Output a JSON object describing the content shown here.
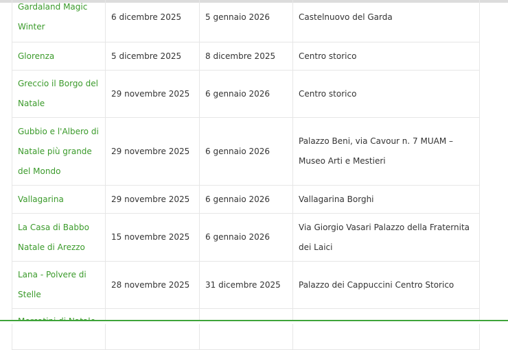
{
  "rows": [
    {
      "name": "Gardaland Magic Winter",
      "start": "6 dicembre 2025",
      "end": "5 gennaio 2026",
      "place": "Castelnuovo del Garda"
    },
    {
      "name": "Glorenza",
      "start": "5 dicembre 2025",
      "end": "8 dicembre 2025",
      "place": "Centro storico"
    },
    {
      "name": "Greccio il Borgo del Natale",
      "start": "29 novembre 2025",
      "end": "6 gennaio 2026",
      "place": "Centro storico"
    },
    {
      "name": "Gubbio e l'Albero di Natale più grande del Mondo",
      "start": "29 novembre 2025",
      "end": "6 gennaio 2026",
      "place": "Palazzo Beni, via Cavour n. 7 MUAM – Museo Arti e Mestieri"
    },
    {
      "name": "Vallagarina",
      "start": "29 novembre 2025",
      "end": "6 gennaio 2026",
      "place": "Vallagarina Borghi"
    },
    {
      "name": "La Casa di Babbo Natale di Arezzo",
      "start": "15 novembre 2025",
      "end": "6 gennaio 2026",
      "place": "Via Giorgio Vasari Palazzo della Fraternita dei Laici"
    },
    {
      "name": "Lana - Polvere di Stelle",
      "start": "28 novembre 2025",
      "end": "31 dicembre 2025",
      "place": "Palazzo dei Cappuccini Centro Storico"
    },
    {
      "name": "Mercatini di Natale",
      "start": "",
      "end": "",
      "place": ""
    }
  ],
  "colors": {
    "link": "#3a9a2a",
    "accent_bar": "#3fa43a"
  }
}
